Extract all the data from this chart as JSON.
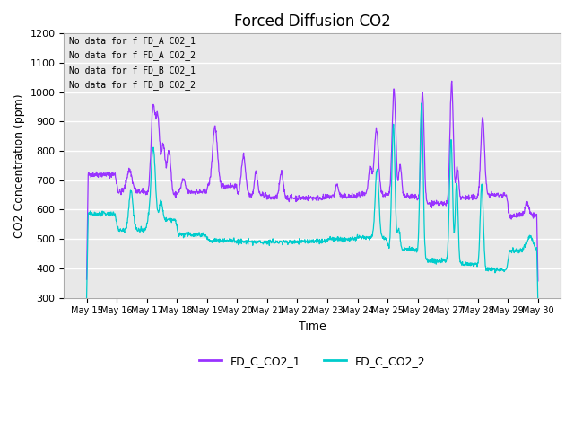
{
  "title": "Forced Diffusion CO2",
  "xlabel": "Time",
  "ylabel": "CO2 Concentration (ppm)",
  "ylim": [
    300,
    1200
  ],
  "line1_color": "#9933FF",
  "line2_color": "#00CCCC",
  "line1_label": "FD_C_CO2_1",
  "line2_label": "FD_C_CO2_2",
  "no_data_lines": [
    "No data for f FD_A CO2_1",
    "No data for f FD_A CO2_2",
    "No data for f FD_B CO2_1",
    "No data for f FD_B CO2_2"
  ],
  "bg_color": "#e8e8e8",
  "fig_bg_color": "#ffffff",
  "grid_color": "#ffffff",
  "title_fontsize": 12,
  "axis_fontsize": 9,
  "legend_fontsize": 9
}
